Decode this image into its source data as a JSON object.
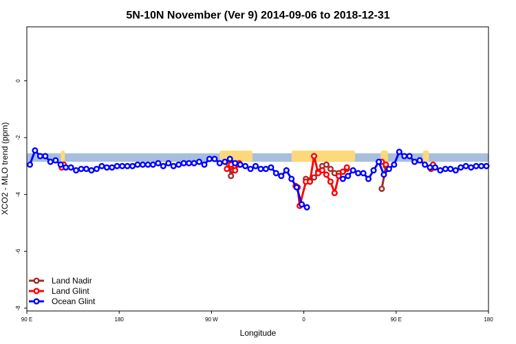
{
  "chart_data": {
    "type": "line",
    "title": "5N-10N November (Ver 9)   2014-09-06 to 2018-12-31",
    "xlabel": "Longitude",
    "ylabel": "XCO2 - MLO trend (ppm)",
    "x_ticks": [
      {
        "x": 0,
        "label": "90 E"
      },
      {
        "x": 90,
        "label": "180"
      },
      {
        "x": 180,
        "label": "90 W"
      },
      {
        "x": 270,
        "label": "0"
      },
      {
        "x": 360,
        "label": "90 E"
      },
      {
        "x": 450,
        "label": "180"
      }
    ],
    "y_ticks": [
      {
        "y": 0,
        "label": "0"
      },
      {
        "y": -2,
        "label": "-2"
      },
      {
        "y": -4,
        "label": "-4"
      },
      {
        "y": -6,
        "label": "-6"
      },
      {
        "y": -8,
        "label": "-8"
      }
    ],
    "xlim": [
      0,
      450
    ],
    "ylim": [
      -8.1,
      1.9
    ],
    "grid": false,
    "legend_position": "bottom-left",
    "colors": {
      "land_nadir": "#a52a2a",
      "land_glint": "#ff0000",
      "ocean_glint": "#0000ff",
      "band_ocean": "#a7bedf",
      "band_land": "#fcd97a"
    },
    "surface_band": {
      "y_top": -2.55,
      "y_bottom": -2.85,
      "land_regions": [
        [
          33,
          37
        ],
        [
          188,
          220
        ],
        [
          258,
          320
        ],
        [
          345,
          352
        ],
        [
          386,
          392
        ]
      ]
    },
    "series": [
      {
        "name": "Land Nadir",
        "color_key": "land_nadir",
        "x": [
          197,
          199,
          201,
          207,
          272,
          276,
          280,
          284,
          288,
          292,
          296,
          300,
          304,
          308,
          312,
          346,
          350
        ],
        "y": [
          -2.95,
          -3.35,
          -3.15,
          -2.95,
          -3.45,
          -3.5,
          -3.4,
          -3.2,
          -3.0,
          -2.95,
          -3.1,
          -3.25,
          -3.25,
          -3.2,
          -3.1,
          -3.8,
          -3.0
        ]
      },
      {
        "name": "Land Glint",
        "color_key": "land_glint",
        "x": [
          34,
          36,
          195,
          199,
          203,
          207,
          262,
          264,
          266,
          272,
          276,
          280,
          284,
          288,
          292,
          296,
          300,
          304,
          308,
          312,
          346,
          350,
          394,
          396
        ],
        "y": [
          -3.05,
          -2.95,
          -3.1,
          -2.95,
          -3.15,
          -2.9,
          -3.7,
          -3.75,
          -4.4,
          -3.55,
          -3.55,
          -2.65,
          -3.25,
          -3.15,
          -3.3,
          -3.55,
          -3.95,
          -3.35,
          -3.2,
          -3.05,
          -2.85,
          -2.95,
          -3.1,
          -2.95
        ]
      },
      {
        "name": "Ocean Glint",
        "color_key": "ocean_glint",
        "x": [
          3,
          8,
          13,
          18,
          23,
          28,
          33,
          38,
          43,
          48,
          53,
          58,
          63,
          68,
          73,
          78,
          83,
          88,
          93,
          98,
          103,
          108,
          113,
          118,
          123,
          128,
          133,
          138,
          143,
          148,
          153,
          158,
          163,
          168,
          173,
          178,
          183,
          188,
          193,
          198,
          203,
          208,
          213,
          218,
          223,
          228,
          233,
          238,
          243,
          248,
          253,
          258,
          263,
          268,
          273,
          308,
          313,
          318,
          323,
          328,
          333,
          338,
          343,
          348,
          353,
          358,
          363,
          368,
          373,
          378,
          383,
          388,
          393,
          398,
          403,
          408,
          413,
          418,
          423,
          428,
          433,
          438,
          443,
          448
        ],
        "y": [
          -2.95,
          -2.45,
          -2.65,
          -2.65,
          -2.85,
          -2.8,
          -2.95,
          -3.05,
          -3.05,
          -3.15,
          -3.1,
          -3.1,
          -3.15,
          -3.1,
          -3.0,
          -3.05,
          -3.05,
          -3.0,
          -3.0,
          -3.0,
          -3.0,
          -2.95,
          -2.95,
          -2.95,
          -2.95,
          -2.9,
          -3.0,
          -2.9,
          -3.0,
          -2.95,
          -2.9,
          -2.9,
          -2.9,
          -2.85,
          -2.95,
          -2.75,
          -2.75,
          -2.9,
          -2.85,
          -2.75,
          -2.9,
          -2.95,
          -3.0,
          -3.1,
          -3.0,
          -3.1,
          -3.1,
          -3.05,
          -3.25,
          -3.35,
          -3.15,
          -3.45,
          -3.75,
          -4.35,
          -4.45,
          -3.45,
          -3.35,
          -3.15,
          -3.25,
          -3.25,
          -3.45,
          -3.15,
          -2.85,
          -3.3,
          -3.1,
          -2.95,
          -2.5,
          -2.65,
          -2.65,
          -2.85,
          -2.8,
          -2.95,
          -3.05,
          -3.05,
          -3.15,
          -3.1,
          -3.1,
          -3.15,
          -3.05,
          -3.0,
          -3.05,
          -3.0,
          -3.0,
          -3.0
        ]
      }
    ]
  }
}
